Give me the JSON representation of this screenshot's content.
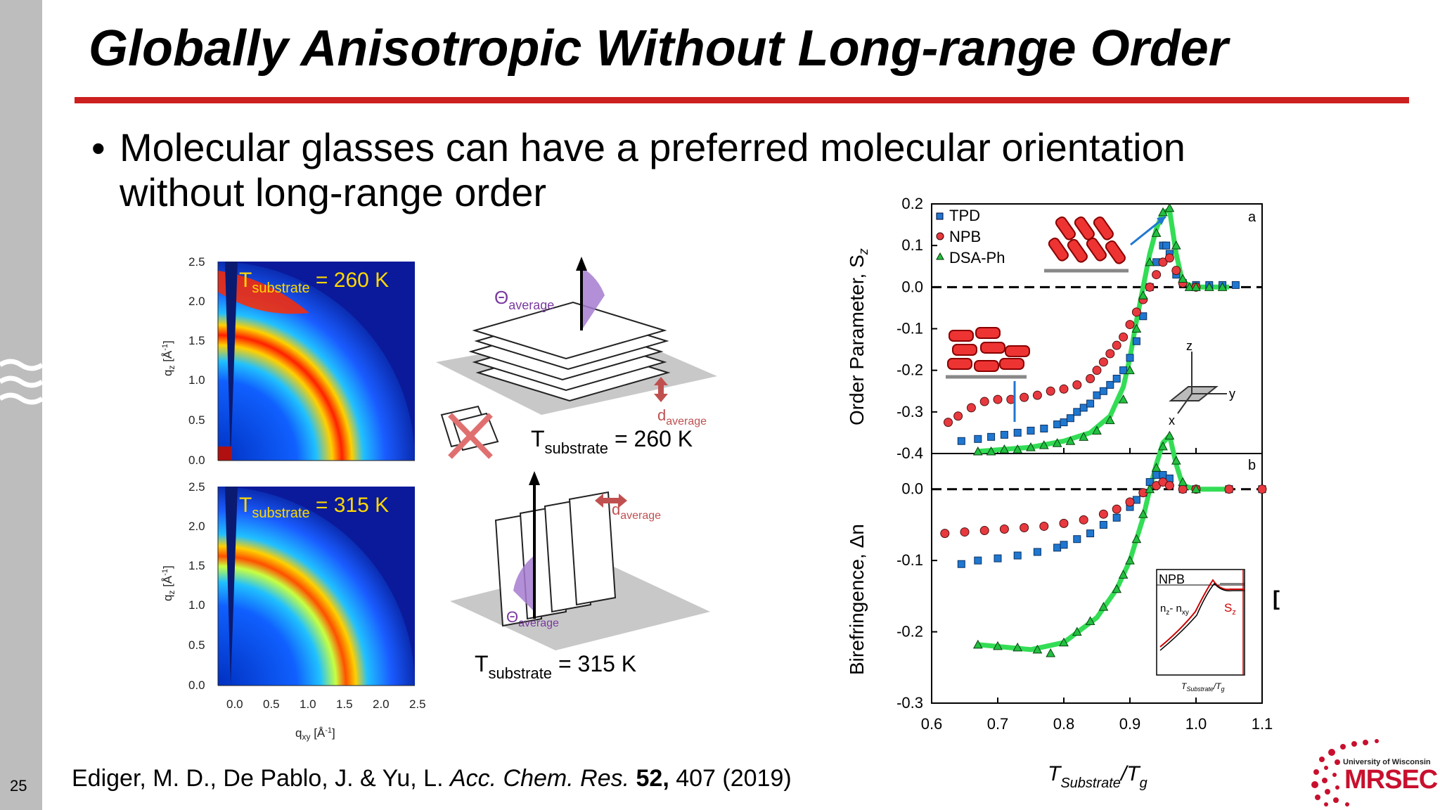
{
  "slide": {
    "title": "Globally Anisotropic Without Long-range Order",
    "bullet_symbol": "•",
    "bullet_line1": "Molecular glasses can have a preferred molecular orientation",
    "bullet_line2": "without long-range order",
    "page_number": "25",
    "citation": {
      "authors": "Ediger, M. D., De Pablo, J. & Yu, L. ",
      "journal": "Acc. Chem. Res.",
      "volume": " 52,",
      "rest": " 407 (2019)"
    },
    "bracket": "[",
    "logo": {
      "top_text": "University of Wisconsin",
      "main_text": "MRSEC"
    }
  },
  "colors": {
    "accent_red": "#cc1f1f",
    "sidebar_gray": "#bdbdbd",
    "logo_red": "#c8102e"
  },
  "left_figure": {
    "top": {
      "label_T": "T",
      "label_sub": "substrate",
      "label_val": " = 260 K"
    },
    "bottom": {
      "label_T": "T",
      "label_sub": "substrate",
      "label_val": " = 315 K"
    },
    "y_ticks": [
      "2.5",
      "2.0",
      "1.5",
      "1.0",
      "0.5",
      "0.0"
    ],
    "x_ticks": [
      "0.0",
      "0.5",
      "1.0",
      "1.5",
      "2.0",
      "2.5"
    ],
    "y_label": "q",
    "y_label_sub": "z",
    "y_label_unit": " [Å",
    "y_label_sup": "-1",
    "y_label_close": "]",
    "x_label": "q",
    "x_label_sub": "xy",
    "x_label_unit": " [Å",
    "x_label_sup": "-1",
    "x_label_close": "]"
  },
  "middle_figure": {
    "theta_top": "Θ",
    "theta_top_sub": "average",
    "d_top": "d",
    "d_top_sub": "average",
    "T_top": "T",
    "T_top_sub": "substrate",
    "T_top_val": " = 260 K",
    "d_bot": "d",
    "d_bot_sub": "average",
    "theta_bot": "Θ",
    "theta_bot_sub": "average",
    "T_bot": "T",
    "T_bot_sub": "substrate",
    "T_bot_val": " = 315 K",
    "axis_z": "z",
    "axis_y": "y",
    "axis_x": "x"
  },
  "chart_data": {
    "type": "scatter",
    "panels": [
      {
        "id": "a",
        "ylabel": "Order Parameter, S",
        "ylabel_sub": "z",
        "ylim": [
          -0.4,
          0.2
        ],
        "y_ticks": [
          "0.2",
          "0.1",
          "0.0",
          "-0.1",
          "-0.2",
          "-0.3",
          "-0.4"
        ],
        "legend": [
          "TPD",
          "NPB",
          "DSA-Ph"
        ],
        "series": [
          {
            "name": "TPD",
            "color": "#1f77d0",
            "marker": "square",
            "x": [
              0.645,
              0.67,
              0.69,
              0.71,
              0.73,
              0.75,
              0.77,
              0.79,
              0.8,
              0.81,
              0.82,
              0.83,
              0.84,
              0.85,
              0.86,
              0.87,
              0.88,
              0.89,
              0.9,
              0.91,
              0.92,
              0.93,
              0.94,
              0.95,
              0.955,
              0.96,
              0.97,
              0.98,
              1.0,
              1.02,
              1.04,
              1.06
            ],
            "y": [
              -0.37,
              -0.365,
              -0.36,
              -0.355,
              -0.35,
              -0.345,
              -0.34,
              -0.33,
              -0.325,
              -0.315,
              -0.3,
              -0.29,
              -0.28,
              -0.26,
              -0.25,
              -0.235,
              -0.22,
              -0.2,
              -0.17,
              -0.13,
              -0.07,
              0.0,
              0.06,
              0.1,
              0.1,
              0.08,
              0.03,
              0.01,
              0.005,
              0.005,
              0.005,
              0.005
            ]
          },
          {
            "name": "NPB",
            "color": "#e8393f",
            "marker": "circle",
            "x": [
              0.625,
              0.64,
              0.66,
              0.68,
              0.7,
              0.72,
              0.74,
              0.76,
              0.78,
              0.8,
              0.82,
              0.84,
              0.85,
              0.86,
              0.87,
              0.88,
              0.89,
              0.9,
              0.91,
              0.92,
              0.93,
              0.94,
              0.95,
              0.96,
              0.97,
              0.98,
              1.0
            ],
            "y": [
              -0.325,
              -0.31,
              -0.29,
              -0.275,
              -0.27,
              -0.27,
              -0.265,
              -0.26,
              -0.25,
              -0.245,
              -0.235,
              -0.22,
              -0.2,
              -0.18,
              -0.16,
              -0.14,
              -0.12,
              -0.09,
              -0.06,
              -0.03,
              0.0,
              0.03,
              0.06,
              0.07,
              0.04,
              0.01,
              0.0
            ]
          },
          {
            "name": "DSA-Ph",
            "color": "#22c040",
            "marker": "triangle",
            "x": [
              0.67,
              0.69,
              0.71,
              0.73,
              0.75,
              0.77,
              0.79,
              0.81,
              0.83,
              0.85,
              0.87,
              0.89,
              0.9,
              0.91,
              0.92,
              0.93,
              0.94,
              0.95,
              0.96,
              0.97,
              0.98,
              0.99,
              1.0,
              1.02,
              1.04
            ],
            "y": [
              -0.395,
              -0.395,
              -0.39,
              -0.39,
              -0.385,
              -0.38,
              -0.375,
              -0.37,
              -0.36,
              -0.345,
              -0.32,
              -0.27,
              -0.2,
              -0.1,
              -0.02,
              0.06,
              0.13,
              0.18,
              0.19,
              0.1,
              0.02,
              0.0,
              0.0,
              0.0,
              0.0
            ]
          }
        ],
        "fit": {
          "color": "#33dd55",
          "x": [
            0.67,
            0.75,
            0.8,
            0.84,
            0.87,
            0.89,
            0.9,
            0.91,
            0.92,
            0.93,
            0.94,
            0.95,
            0.96,
            0.97,
            0.98,
            1.0,
            1.05
          ],
          "y": [
            -0.395,
            -0.385,
            -0.37,
            -0.35,
            -0.31,
            -0.24,
            -0.17,
            -0.08,
            0.0,
            0.08,
            0.14,
            0.18,
            0.185,
            0.08,
            0.01,
            0.0,
            0.0
          ]
        }
      },
      {
        "id": "b",
        "ylabel": "Birefringence, Δn",
        "ylim": [
          -0.3,
          0.05
        ],
        "y_ticks": [
          "0.0",
          "-0.1",
          "-0.2",
          "-0.3"
        ],
        "series": [
          {
            "name": "TPD",
            "color": "#1f77d0",
            "marker": "square",
            "x": [
              0.645,
              0.67,
              0.7,
              0.73,
              0.76,
              0.79,
              0.8,
              0.82,
              0.84,
              0.86,
              0.88,
              0.9,
              0.91,
              0.92,
              0.93,
              0.94,
              0.95,
              0.96,
              0.98,
              1.0,
              1.05,
              1.1
            ],
            "y": [
              -0.105,
              -0.1,
              -0.097,
              -0.093,
              -0.088,
              -0.082,
              -0.078,
              -0.07,
              -0.062,
              -0.05,
              -0.04,
              -0.025,
              -0.015,
              -0.005,
              0.01,
              0.02,
              0.02,
              0.015,
              0.0,
              0.0,
              0.0,
              0.0
            ]
          },
          {
            "name": "NPB",
            "color": "#e8393f",
            "marker": "circle",
            "x": [
              0.62,
              0.65,
              0.68,
              0.71,
              0.74,
              0.77,
              0.8,
              0.83,
              0.86,
              0.88,
              0.9,
              0.92,
              0.94,
              0.95,
              0.96,
              0.98,
              1.0,
              1.05,
              1.1
            ],
            "y": [
              -0.062,
              -0.06,
              -0.058,
              -0.056,
              -0.054,
              -0.052,
              -0.048,
              -0.043,
              -0.035,
              -0.028,
              -0.018,
              -0.005,
              0.005,
              0.01,
              0.005,
              0.0,
              0.0,
              0.0,
              0.0
            ]
          },
          {
            "name": "DSA-Ph",
            "color": "#22c040",
            "marker": "triangle",
            "x": [
              0.67,
              0.7,
              0.73,
              0.76,
              0.78,
              0.8,
              0.82,
              0.84,
              0.86,
              0.88,
              0.89,
              0.9,
              0.91,
              0.92,
              0.93,
              0.94,
              0.95,
              0.96,
              0.97,
              0.98,
              1.0
            ],
            "y": [
              -0.218,
              -0.22,
              -0.222,
              -0.225,
              -0.23,
              -0.215,
              -0.2,
              -0.185,
              -0.165,
              -0.14,
              -0.12,
              -0.1,
              -0.07,
              -0.035,
              0.0,
              0.03,
              0.06,
              0.075,
              0.04,
              0.01,
              0.0
            ]
          }
        ],
        "fit": {
          "color": "#33dd55",
          "x": [
            0.67,
            0.75,
            0.8,
            0.85,
            0.88,
            0.9,
            0.92,
            0.93,
            0.94,
            0.95,
            0.96,
            0.97,
            0.98,
            1.0,
            1.05
          ],
          "y": [
            -0.218,
            -0.225,
            -0.215,
            -0.18,
            -0.14,
            -0.1,
            -0.04,
            0.0,
            0.035,
            0.065,
            0.075,
            0.035,
            0.005,
            0.0,
            0.0
          ]
        }
      }
    ],
    "xlim": [
      0.6,
      1.1
    ],
    "x_ticks": [
      "0.6",
      "0.7",
      "0.8",
      "0.9",
      "1.0",
      "1.1"
    ],
    "xlabel": "T",
    "xlabel_sub": "Substrate",
    "xlabel_rest": "/T",
    "xlabel_sub2": "g",
    "inset": {
      "title": "NPB",
      "lbl1": "n",
      "lbl1_sub1": "z",
      "lbl1_mid": "- n",
      "lbl1_sub2": "xy",
      "lbl2": "S",
      "lbl2_sub": "z",
      "xlabel": "T",
      "xlabel_sub": "Substrate",
      "xlabel_rest": "/T",
      "xlabel_sub2": "g"
    }
  }
}
